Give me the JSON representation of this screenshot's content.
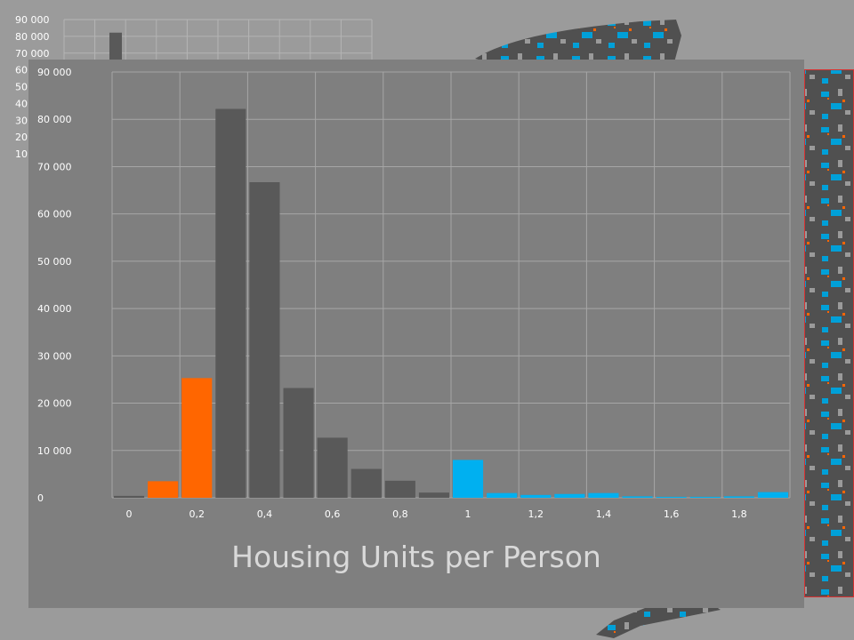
{
  "chart_data": [
    {
      "type": "bar",
      "x": [
        0.0,
        0.1,
        0.2,
        0.3,
        0.4,
        0.5,
        0.6,
        0.7,
        0.8,
        0.9,
        1.0,
        1.1,
        1.2,
        1.3,
        1.4,
        1.5,
        1.6,
        1.7,
        1.8,
        1.9
      ],
      "values": [
        400,
        3500,
        25300,
        82200,
        66700,
        23200,
        12700,
        6100,
        3600,
        1100,
        8000,
        1000,
        600,
        800,
        1000,
        300,
        200,
        200,
        300,
        1200
      ],
      "bar_colors": [
        "#595959",
        "#ff6600",
        "#ff6600",
        "#595959",
        "#595959",
        "#595959",
        "#595959",
        "#595959",
        "#595959",
        "#595959",
        "#00b0f0",
        "#00b0f0",
        "#00b0f0",
        "#00b0f0",
        "#00b0f0",
        "#00b0f0",
        "#00b0f0",
        "#00b0f0",
        "#00b0f0",
        "#00b0f0"
      ],
      "xticks": [
        "0",
        "0,2",
        "0,4",
        "0,6",
        "0,8",
        "1",
        "1,2",
        "1,4",
        "1,6",
        "1,8"
      ],
      "yticks": [
        "0",
        "10 000",
        "20 000",
        "30 000",
        "40 000",
        "50 000",
        "60 000",
        "70 000",
        "80 000",
        "90 000"
      ],
      "ylim": [
        0,
        90000
      ],
      "xlabel": "Housing Units per Person",
      "grid": true
    },
    {
      "type": "bar",
      "yticks_visible": [
        "90 000",
        "80 000",
        "70 000",
        "60",
        "50",
        "40",
        "30",
        "20",
        "10"
      ],
      "ylim": [
        0,
        90000
      ],
      "visible_bar_value": 82200,
      "grid": true
    }
  ],
  "colors": {
    "background": "#9b9b9b",
    "panel": "#7f7f7f",
    "gray_bars": "#595959",
    "orange_bars": "#ff6600",
    "blue_bars": "#00b0f0",
    "axis_title": "#d9d9d9"
  }
}
